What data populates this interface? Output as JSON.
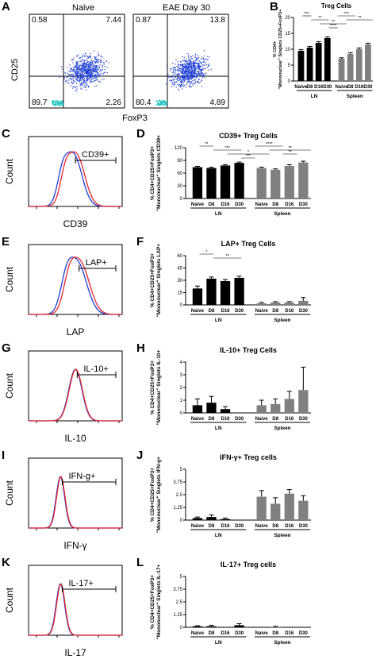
{
  "panel_letters": [
    "A",
    "B",
    "C",
    "D",
    "E",
    "F",
    "G",
    "H",
    "I",
    "J",
    "K",
    "L"
  ],
  "flow_scatter": {
    "xlabel": "FoxP3",
    "ylabel": "CD25",
    "plots": [
      {
        "title": "Naive",
        "q": {
          "ul": "0.58",
          "ur": "7.44",
          "ll": "89.7",
          "lr": "2.26"
        }
      },
      {
        "title": "EAE Day 30",
        "q": {
          "ul": "0.87",
          "ur": "13.8",
          "ll": "80.4",
          "lr": "4.89"
        }
      }
    ]
  },
  "histograms": [
    {
      "xlabel": "CD39",
      "ylabel": "Count",
      "gate": "CD39+"
    },
    {
      "xlabel": "LAP",
      "ylabel": "Count",
      "gate": "LAP+"
    },
    {
      "xlabel": "IL-10",
      "ylabel": "Count",
      "gate": "IL-10+"
    },
    {
      "xlabel": "IFN-γ",
      "ylabel": "Count",
      "gate": "IFN-g+"
    },
    {
      "xlabel": "IL-17",
      "ylabel": "Count",
      "gate": "IL-17+"
    }
  ],
  "colors": {
    "blue": "#1f3fd6",
    "red": "#e8272c",
    "black_bar": "#000000",
    "gray_bar": "#808080",
    "scatter": "#1f3fd6",
    "scatter_low": "#22c4c4"
  },
  "chart_data": [
    {
      "type": "bar",
      "title": "Treg Cells",
      "ylabel": "% CD4+ \"Mononuclear\" Singlets CD25+FoxP3+",
      "categories": [
        "Naive",
        "D8",
        "D16",
        "D30",
        "Naive",
        "D8",
        "D16",
        "D30"
      ],
      "groups": [
        "LN",
        "Spleen"
      ],
      "values": [
        9.5,
        10.5,
        12,
        13.5,
        7,
        8.5,
        10,
        11.5
      ],
      "errors": [
        0.4,
        0.4,
        0.4,
        0.4,
        0.3,
        0.4,
        0.4,
        0.4
      ],
      "ylim": [
        0,
        20
      ],
      "significance": [
        "***",
        "**",
        "**",
        "****",
        "***",
        "**"
      ]
    },
    {
      "type": "bar",
      "title": "CD39+ Treg Cells",
      "ylabel": "% CD4+CD25+FoxP3+ \"Mononuclear\" Singlets CD39+",
      "categories": [
        "Naive",
        "D8",
        "D16",
        "D30",
        "Naive",
        "D8",
        "D16",
        "D30"
      ],
      "groups": [
        "LN",
        "Spleen"
      ],
      "values": [
        74,
        72,
        78,
        84,
        72,
        68,
        77,
        85
      ],
      "errors": [
        2,
        2,
        2,
        2,
        2,
        2,
        3,
        3
      ],
      "ylim": [
        0,
        120
      ],
      "significance": [
        "**",
        "***",
        "*",
        "***",
        "****",
        "**",
        "**"
      ]
    },
    {
      "type": "bar",
      "title": "LAP+ Treg Cells",
      "ylabel": "% CD4+CD25+FoxP3+ \"Mononuclear\" Singlets LAP+",
      "categories": [
        "Naive",
        "D8",
        "D16",
        "D30",
        "Naive",
        "D8",
        "D16",
        "D30"
      ],
      "groups": [
        "LN",
        "Spleen"
      ],
      "values": [
        20,
        32,
        29,
        33,
        2,
        3,
        3,
        5
      ],
      "errors": [
        3,
        2,
        2,
        2,
        1,
        1,
        1,
        4
      ],
      "ylim": [
        0,
        60
      ],
      "significance": [
        "*",
        "**"
      ]
    },
    {
      "type": "bar",
      "title": "IL-10+ Treg Cells",
      "ylabel": "% CD4+CD25+FoxP3+ \"Mononuclear\" Singlets IL-10+",
      "categories": [
        "Naive",
        "D8",
        "D16",
        "D30",
        "Naive",
        "D8",
        "D16",
        "D30"
      ],
      "groups": [
        "LN",
        "Spleen"
      ],
      "values": [
        0.6,
        0.8,
        0.3,
        0.0,
        0.6,
        0.7,
        1.1,
        1.8
      ],
      "errors": [
        0.5,
        0.5,
        0.2,
        0.0,
        0.4,
        0.4,
        0.6,
        1.8
      ],
      "ylim": [
        0,
        4
      ],
      "significance": []
    },
    {
      "type": "bar",
      "title": "IFN-γ+ Treg cells",
      "ylabel": "% CD4+CD25+FoxP3+ \"Mononuclear\" Singlets IFN-g+",
      "categories": [
        "Naive",
        "D8",
        "D16",
        "D30",
        "Naive",
        "D8",
        "D16",
        "D30"
      ],
      "groups": [
        "LN",
        "Spleen"
      ],
      "values": [
        0.2,
        0.3,
        0.1,
        0.0,
        2.3,
        1.6,
        2.6,
        1.9
      ],
      "errors": [
        0.1,
        0.2,
        0.1,
        0.0,
        0.6,
        0.6,
        0.4,
        0.5
      ],
      "ylim": [
        0,
        5
      ],
      "significance": []
    },
    {
      "type": "bar",
      "title": "IL-17+ Treg cells",
      "ylabel": "% CD4+CD25+FoxP3+ \"Mononuclear\" Singlets IL-17+",
      "categories": [
        "Naive",
        "D8",
        "D16",
        "D30",
        "Naive",
        "D8",
        "D16",
        "D30"
      ],
      "groups": [
        "LN",
        "Spleen"
      ],
      "values": [
        0.1,
        0.1,
        0.0,
        0.2,
        0.0,
        0.05,
        0.0,
        0.0
      ],
      "errors": [
        0.05,
        0.1,
        0.0,
        0.15,
        0.0,
        0.05,
        0.0,
        0.0
      ],
      "ylim": [
        0,
        5
      ],
      "significance": []
    }
  ]
}
